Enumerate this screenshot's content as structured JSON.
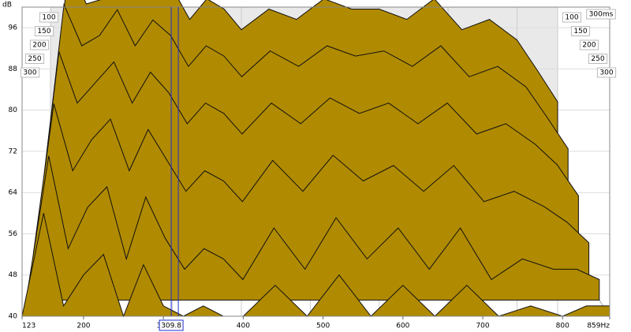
{
  "chart_data": {
    "type": "waterfall",
    "y_label": "dB",
    "x": [
      123,
      150,
      175,
      200,
      225,
      250,
      275,
      300,
      325,
      350,
      375,
      400,
      440,
      480,
      520,
      560,
      600,
      640,
      680,
      720,
      760,
      800,
      830,
      859
    ],
    "series": [
      {
        "time": 0,
        "color": "#b08a00",
        "values": [
          60,
          93,
          85,
          86,
          92,
          86,
          90,
          88,
          82,
          86,
          84,
          80,
          84,
          82,
          86,
          84,
          84,
          82,
          86,
          80,
          82,
          78,
          72,
          66
        ]
      },
      {
        "time": 60,
        "color": "#b08a00",
        "values": [
          56,
          88,
          80,
          82,
          87,
          80,
          85,
          82,
          76,
          80,
          78,
          74,
          79,
          76,
          80,
          78,
          79,
          76,
          80,
          74,
          76,
          72,
          66,
          60
        ]
      },
      {
        "time": 120,
        "color": "#b08a00",
        "values": [
          50,
          82,
          72,
          76,
          80,
          72,
          78,
          74,
          68,
          72,
          70,
          66,
          72,
          68,
          73,
          70,
          72,
          68,
          72,
          66,
          68,
          64,
          60,
          54
        ]
      },
      {
        "time": 180,
        "color": "#b08a00",
        "values": [
          46,
          75,
          62,
          68,
          72,
          62,
          70,
          64,
          58,
          62,
          60,
          56,
          64,
          58,
          65,
          60,
          63,
          58,
          63,
          56,
          58,
          55,
          52,
          48
        ]
      },
      {
        "time": 240,
        "color": "#b08a00",
        "values": [
          42,
          68,
          50,
          58,
          62,
          48,
          60,
          52,
          46,
          50,
          48,
          44,
          54,
          46,
          56,
          48,
          54,
          46,
          54,
          44,
          48,
          46,
          46,
          44
        ]
      },
      {
        "time": 300,
        "color": "#b08a00",
        "values": [
          40,
          60,
          42,
          48,
          52,
          40,
          50,
          42,
          40,
          42,
          40,
          40,
          46,
          40,
          48,
          40,
          46,
          40,
          46,
          40,
          42,
          40,
          42,
          42
        ]
      }
    ],
    "xlim": [
      123,
      859
    ],
    "ylim": [
      40,
      100
    ],
    "tlim": [
      0,
      300
    ],
    "xticks": [
      123,
      200,
      300,
      400,
      500,
      600,
      700,
      800,
      {
        "value": 859,
        "label": "859Hz"
      }
    ],
    "yticks": [
      40,
      48,
      56,
      64,
      72,
      80,
      88,
      96
    ],
    "time_ticks": [
      100,
      150,
      200,
      250,
      300
    ],
    "time_axis_title": "300ms",
    "cursor_x": 309.8,
    "grid": true
  }
}
